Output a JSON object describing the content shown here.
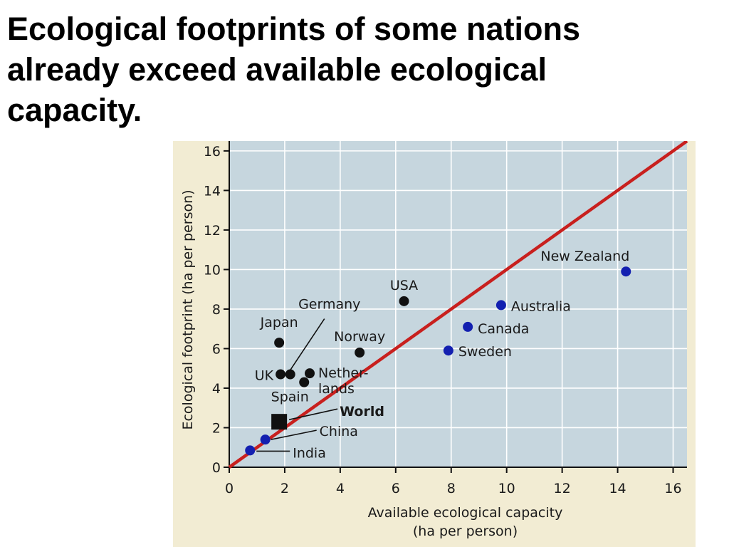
{
  "slide": {
    "title": "Ecological footprints of some nations already exceed available ecological capacity."
  },
  "colors": {
    "panel_background": "#f2ecd3",
    "plot_background": "#c6d6de",
    "grid": "#ffffff",
    "parity_line": "#c8201e",
    "deficit_point": "#111111",
    "surplus_point": "#1320b0"
  },
  "chart_data": {
    "type": "scatter",
    "xlabel": [
      "Available ecological capacity",
      "(ha per person)"
    ],
    "ylabel": "Ecological footprint (ha per person)",
    "xlim": [
      0,
      16.5
    ],
    "ylim": [
      0,
      16.5
    ],
    "xticks": [
      0,
      2,
      4,
      6,
      8,
      10,
      12,
      14,
      16
    ],
    "yticks": [
      0,
      2,
      4,
      6,
      8,
      10,
      12,
      14,
      16
    ],
    "grid": true,
    "reference_line": {
      "from": [
        0,
        0
      ],
      "to": [
        16.5,
        16.5
      ]
    },
    "points": [
      {
        "label": "USA",
        "x": 6.3,
        "y": 8.4,
        "color": "#111111"
      },
      {
        "label": "Germany",
        "x": 2.2,
        "y": 4.7,
        "color": "#111111"
      },
      {
        "label": "Japan",
        "x": 1.8,
        "y": 6.3,
        "color": "#111111"
      },
      {
        "label": "Norway",
        "x": 4.7,
        "y": 5.8,
        "color": "#111111"
      },
      {
        "label": "UK",
        "x": 1.85,
        "y": 4.7,
        "color": "#111111"
      },
      {
        "label": "Nether-\nlands",
        "x": 2.9,
        "y": 4.75,
        "color": "#111111"
      },
      {
        "label": "Spain",
        "x": 2.7,
        "y": 4.3,
        "color": "#111111"
      },
      {
        "label": "World",
        "x": 1.8,
        "y": 2.3,
        "color": "#111111",
        "marker": "square",
        "bold": true
      },
      {
        "label": "China",
        "x": 1.3,
        "y": 1.4,
        "color": "#1320b0"
      },
      {
        "label": "India",
        "x": 0.75,
        "y": 0.85,
        "color": "#1320b0"
      },
      {
        "label": "Sweden",
        "x": 7.9,
        "y": 5.9,
        "color": "#1320b0"
      },
      {
        "label": "Canada",
        "x": 8.6,
        "y": 7.1,
        "color": "#1320b0"
      },
      {
        "label": "Australia",
        "x": 9.8,
        "y": 8.2,
        "color": "#1320b0"
      },
      {
        "label": "New Zealand",
        "x": 14.3,
        "y": 9.9,
        "color": "#1320b0"
      }
    ]
  }
}
